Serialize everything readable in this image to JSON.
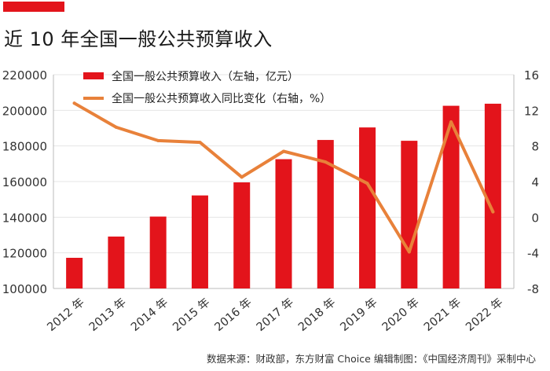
{
  "header": {
    "title": "近 10 年全国一般公共预算收入"
  },
  "footer": {
    "source": "数据来源：财政部，东方财富 Choice   编辑制图：《中国经济周刊》采制中心"
  },
  "colors": {
    "accent": "#e3141b",
    "bar": "#e3141b",
    "line": "#e8813a",
    "grid": "#e4e4e4"
  },
  "chart_data": {
    "type": "bar",
    "categories": [
      "2012 年",
      "2013 年",
      "2014 年",
      "2015 年",
      "2016 年",
      "2017 年",
      "2018 年",
      "2019 年",
      "2020 年",
      "2021 年",
      "2022 年"
    ],
    "series": [
      {
        "name": "全国一般公共预算收入（左轴，亿元）",
        "type": "bar",
        "axis": "left",
        "values": [
          117210,
          129143,
          140350,
          152217,
          159552,
          172567,
          183352,
          190382,
          182895,
          202539,
          203703
        ]
      },
      {
        "name": "全国一般公共预算收入同比变化（右轴，%）",
        "type": "line",
        "axis": "right",
        "values": [
          12.8,
          10.1,
          8.6,
          8.4,
          4.5,
          7.4,
          6.2,
          3.8,
          -3.9,
          10.7,
          0.6
        ]
      }
    ],
    "y_left": {
      "min": 100000,
      "max": 220000,
      "ticks": [
        100000,
        120000,
        140000,
        160000,
        180000,
        200000,
        220000
      ]
    },
    "y_right": {
      "min": -8,
      "max": 16,
      "ticks": [
        -8,
        -4,
        0,
        4,
        8,
        12,
        16
      ]
    },
    "grid": true,
    "legend_position": "top-left"
  }
}
